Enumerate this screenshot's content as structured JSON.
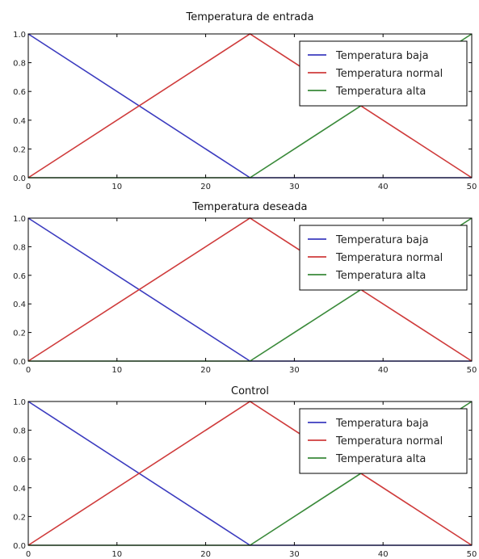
{
  "chart_data": [
    {
      "type": "line",
      "title": "Temperatura de entrada",
      "xlim": [
        0,
        50
      ],
      "ylim": [
        0.0,
        1.0
      ],
      "xticks": [
        "0",
        "10",
        "20",
        "30",
        "40",
        "50"
      ],
      "yticks": [
        "0.0",
        "0.2",
        "0.4",
        "0.6",
        "0.8",
        "1.0"
      ],
      "grid": false,
      "legend": "upper-right",
      "series": [
        {
          "name": "Temperatura baja",
          "color": "#3b3bbf",
          "x": [
            0,
            25,
            50
          ],
          "y": [
            1.0,
            0.0,
            0.0
          ]
        },
        {
          "name": "Temperatura normal",
          "color": "#cf3b3b",
          "x": [
            0,
            25,
            50
          ],
          "y": [
            0.0,
            1.0,
            0.0
          ]
        },
        {
          "name": "Temperatura alta",
          "color": "#3a8a3a",
          "x": [
            0,
            25,
            50
          ],
          "y": [
            0.0,
            0.0,
            1.0
          ]
        }
      ]
    },
    {
      "type": "line",
      "title": "Temperatura deseada",
      "xlim": [
        0,
        50
      ],
      "ylim": [
        0.0,
        1.0
      ],
      "xticks": [
        "0",
        "10",
        "20",
        "30",
        "40",
        "50"
      ],
      "yticks": [
        "0.0",
        "0.2",
        "0.4",
        "0.6",
        "0.8",
        "1.0"
      ],
      "grid": false,
      "legend": "upper-right",
      "series": [
        {
          "name": "Temperatura baja",
          "color": "#3b3bbf",
          "x": [
            0,
            25,
            50
          ],
          "y": [
            1.0,
            0.0,
            0.0
          ]
        },
        {
          "name": "Temperatura normal",
          "color": "#cf3b3b",
          "x": [
            0,
            25,
            50
          ],
          "y": [
            0.0,
            1.0,
            0.0
          ]
        },
        {
          "name": "Temperatura alta",
          "color": "#3a8a3a",
          "x": [
            0,
            25,
            50
          ],
          "y": [
            0.0,
            0.0,
            1.0
          ]
        }
      ]
    },
    {
      "type": "line",
      "title": "Control",
      "xlim": [
        0,
        50
      ],
      "ylim": [
        0.0,
        1.0
      ],
      "xticks": [
        "0",
        "10",
        "20",
        "30",
        "40",
        "50"
      ],
      "yticks": [
        "0.0",
        "0.2",
        "0.4",
        "0.6",
        "0.8",
        "1.0"
      ],
      "grid": false,
      "legend": "upper-right",
      "series": [
        {
          "name": "Temperatura baja",
          "color": "#3b3bbf",
          "x": [
            0,
            25,
            50
          ],
          "y": [
            1.0,
            0.0,
            0.0
          ]
        },
        {
          "name": "Temperatura normal",
          "color": "#cf3b3b",
          "x": [
            0,
            25,
            50
          ],
          "y": [
            0.0,
            1.0,
            0.0
          ]
        },
        {
          "name": "Temperatura alta",
          "color": "#3a8a3a",
          "x": [
            0,
            25,
            50
          ],
          "y": [
            0.0,
            0.0,
            1.0
          ]
        }
      ]
    }
  ]
}
